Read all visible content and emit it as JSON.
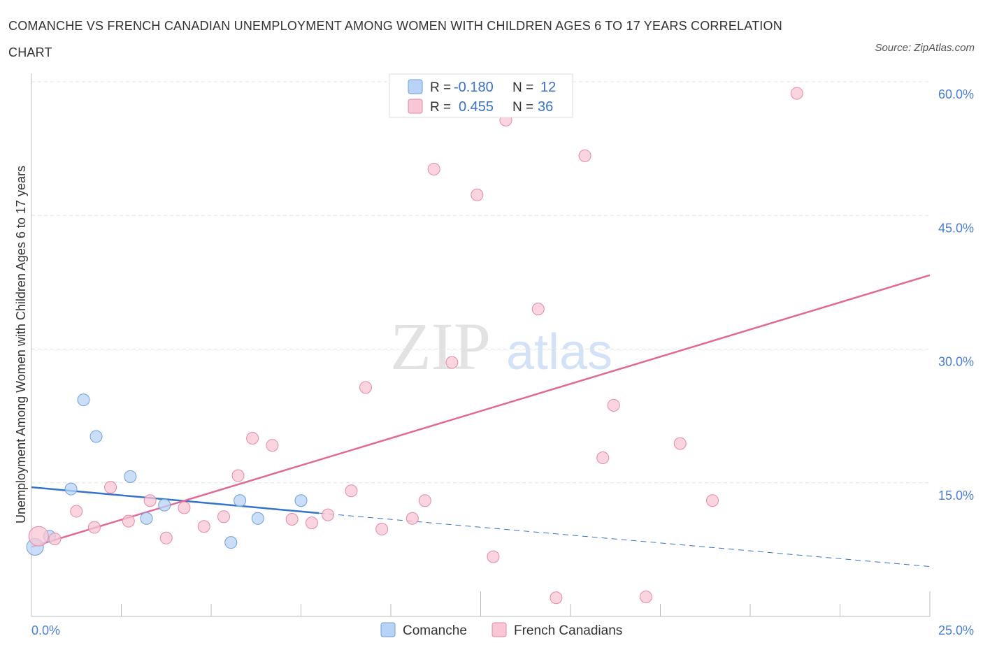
{
  "title": "COMANCHE VS FRENCH CANADIAN UNEMPLOYMENT AMONG WOMEN WITH CHILDREN AGES 6 TO 17 YEARS CORRELATION CHART",
  "source": "Source: ZipAtlas.com",
  "watermark": {
    "zip": "ZIP",
    "atlas": "atlas"
  },
  "stats_legend": {
    "rows": [
      {
        "r_label": "R =",
        "r_value": "-0.180",
        "n_label": "N =",
        "n_value": "12",
        "color": "#b8d3f5",
        "stroke": "#6f9fdc"
      },
      {
        "r_label": "R =",
        "r_value": "0.455",
        "n_label": "N =",
        "n_value": "36",
        "color": "#f8c6d4",
        "stroke": "#e58aa6"
      }
    ]
  },
  "chart_data": {
    "type": "scatter",
    "title": "COMANCHE VS FRENCH CANADIAN UNEMPLOYMENT AMONG WOMEN WITH CHILDREN AGES 6 TO 17 YEARS CORRELATION CHART",
    "xlabel": "",
    "ylabel": "Unemployment Among Women with Children Ages 6 to 17 years",
    "xlim": [
      0,
      25
    ],
    "ylim": [
      0,
      60
    ],
    "x_tick_labels": [
      "0.0%",
      "25.0%"
    ],
    "y_ticks": [
      15,
      30,
      45,
      60
    ],
    "y_tick_labels": [
      "15.0%",
      "30.0%",
      "45.0%",
      "60.0%"
    ],
    "grid": true,
    "series": [
      {
        "name": "Comanche",
        "color": "#b8d3f5",
        "stroke": "#6f9fdc",
        "points": [
          {
            "x": 0.1,
            "y": 7.8,
            "r": 12
          },
          {
            "x": 0.5,
            "y": 9.0
          },
          {
            "x": 1.1,
            "y": 14.3
          },
          {
            "x": 1.45,
            "y": 24.3
          },
          {
            "x": 1.8,
            "y": 20.2
          },
          {
            "x": 2.75,
            "y": 15.7
          },
          {
            "x": 3.2,
            "y": 11.0
          },
          {
            "x": 3.7,
            "y": 12.5
          },
          {
            "x": 5.55,
            "y": 8.3
          },
          {
            "x": 5.8,
            "y": 13.0
          },
          {
            "x": 6.3,
            "y": 11.0
          },
          {
            "x": 7.5,
            "y": 13.0
          }
        ],
        "trend": {
          "x0": 0.0,
          "y0": 14.5,
          "x1": 8.0,
          "y1": 11.6,
          "x_end": 25.0,
          "y_end": 5.6
        }
      },
      {
        "name": "French Canadians",
        "color": "#f8c6d4",
        "stroke": "#e58aa6",
        "points": [
          {
            "x": 0.2,
            "y": 9.0,
            "r": 14
          },
          {
            "x": 0.65,
            "y": 8.7
          },
          {
            "x": 1.25,
            "y": 11.8
          },
          {
            "x": 1.75,
            "y": 10.0
          },
          {
            "x": 2.2,
            "y": 14.5
          },
          {
            "x": 2.7,
            "y": 10.7
          },
          {
            "x": 3.3,
            "y": 13.0
          },
          {
            "x": 3.75,
            "y": 8.8
          },
          {
            "x": 4.25,
            "y": 12.2
          },
          {
            "x": 4.8,
            "y": 10.1
          },
          {
            "x": 5.35,
            "y": 11.2
          },
          {
            "x": 5.75,
            "y": 15.8
          },
          {
            "x": 6.15,
            "y": 20.0
          },
          {
            "x": 6.7,
            "y": 19.2
          },
          {
            "x": 7.25,
            "y": 10.9
          },
          {
            "x": 7.8,
            "y": 10.5
          },
          {
            "x": 8.25,
            "y": 11.4
          },
          {
            "x": 8.9,
            "y": 14.1
          },
          {
            "x": 9.3,
            "y": 25.7
          },
          {
            "x": 9.75,
            "y": 9.8
          },
          {
            "x": 10.6,
            "y": 11.0
          },
          {
            "x": 10.95,
            "y": 13.0
          },
          {
            "x": 11.2,
            "y": 50.2
          },
          {
            "x": 11.7,
            "y": 28.5
          },
          {
            "x": 12.4,
            "y": 47.3
          },
          {
            "x": 12.85,
            "y": 6.7
          },
          {
            "x": 13.2,
            "y": 55.7
          },
          {
            "x": 14.1,
            "y": 34.5
          },
          {
            "x": 14.6,
            "y": 2.1
          },
          {
            "x": 15.4,
            "y": 51.7
          },
          {
            "x": 15.9,
            "y": 17.8
          },
          {
            "x": 16.2,
            "y": 23.7
          },
          {
            "x": 17.1,
            "y": 2.2
          },
          {
            "x": 18.05,
            "y": 19.4
          },
          {
            "x": 18.95,
            "y": 13.0
          },
          {
            "x": 21.3,
            "y": 58.7
          }
        ],
        "trend": {
          "x0": 0.0,
          "y0": 7.8,
          "x1": 25.0,
          "y1": 38.3
        }
      }
    ]
  }
}
